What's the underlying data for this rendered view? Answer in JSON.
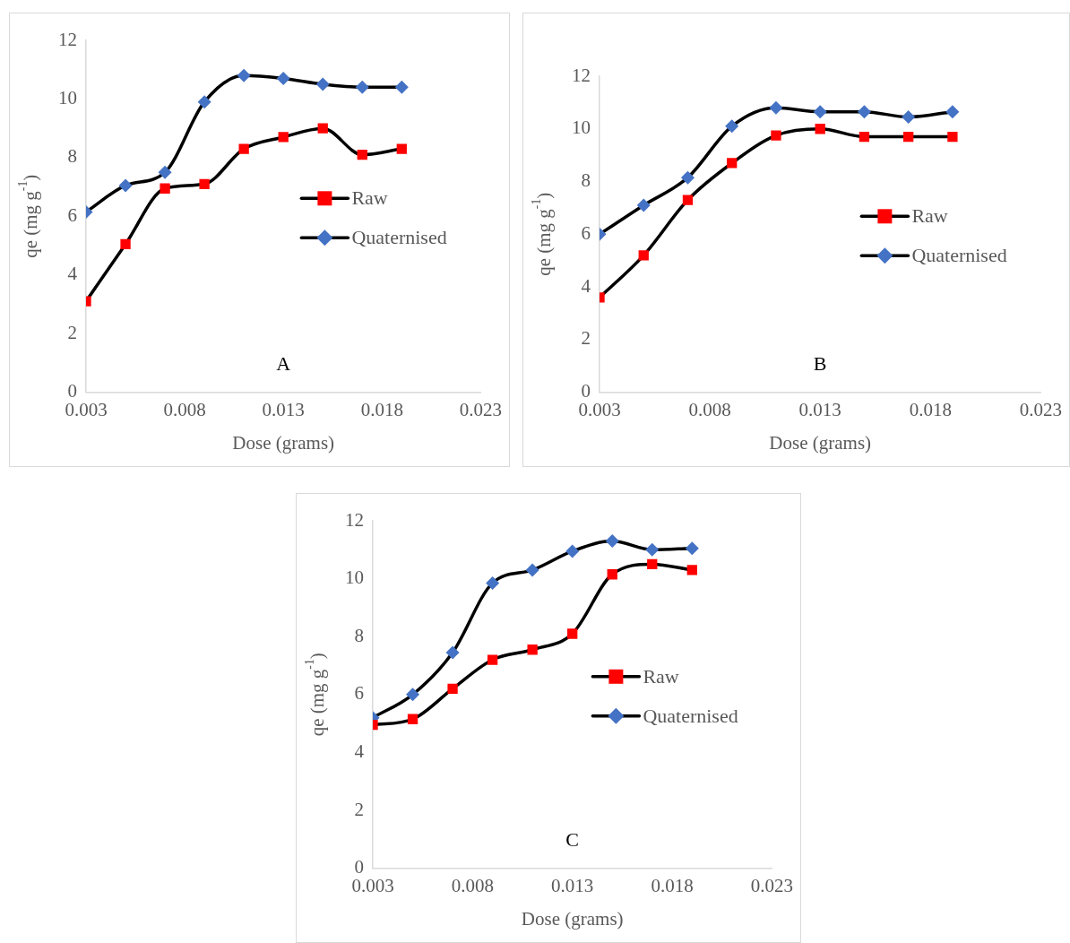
{
  "chart_data": [
    {
      "type": "line",
      "xlabel": "Dose (grams)",
      "ylabel": "qe (mg g$^{-1}$)",
      "x": [
        0.003,
        0.005,
        0.007,
        0.009,
        0.011,
        0.013,
        0.015,
        0.017,
        0.019
      ],
      "xlim": [
        0.003,
        0.023
      ],
      "xticks": [
        0.003,
        0.008,
        0.013,
        0.018,
        0.023
      ],
      "ylim": [
        0,
        12
      ],
      "yticks": [
        0,
        2,
        4,
        6,
        8,
        10,
        12
      ],
      "grid": false,
      "legend": "right",
      "annotations": [
        "A"
      ],
      "series": [
        {
          "name": "Raw",
          "color": "#ff0000",
          "marker": "square",
          "values": [
            3.1,
            5.05,
            6.95,
            7.1,
            8.3,
            8.7,
            9.0,
            8.1,
            8.3
          ]
        },
        {
          "name": "Quaternised",
          "color": "#4472c4",
          "marker": "diamond",
          "values": [
            6.15,
            7.05,
            7.5,
            9.9,
            10.8,
            10.7,
            10.5,
            10.4,
            10.4
          ]
        }
      ]
    },
    {
      "type": "line",
      "xlabel": "Dose (grams)",
      "ylabel": "qe (mg g$^{-1}$)",
      "x": [
        0.003,
        0.005,
        0.007,
        0.009,
        0.011,
        0.013,
        0.015,
        0.017,
        0.019
      ],
      "xlim": [
        0.003,
        0.023
      ],
      "xticks": [
        0.003,
        0.008,
        0.013,
        0.018,
        0.023
      ],
      "ylim": [
        0,
        12
      ],
      "yticks": [
        0,
        2,
        4,
        6,
        8,
        10,
        12
      ],
      "grid": false,
      "legend": "right",
      "annotations": [
        "B"
      ],
      "series": [
        {
          "name": "Raw",
          "color": "#ff0000",
          "marker": "square",
          "values": [
            3.6,
            5.2,
            7.3,
            8.7,
            9.75,
            10.0,
            9.7,
            9.7,
            9.7
          ]
        },
        {
          "name": "Quaternised",
          "color": "#4472c4",
          "marker": "diamond",
          "values": [
            6.0,
            7.1,
            8.15,
            10.1,
            10.8,
            10.65,
            10.65,
            10.45,
            10.65
          ]
        }
      ]
    },
    {
      "type": "line",
      "xlabel": "Dose (grams)",
      "ylabel": "qe (mg g$^{-1}$)",
      "x": [
        0.003,
        0.005,
        0.007,
        0.009,
        0.011,
        0.013,
        0.015,
        0.017,
        0.019
      ],
      "xlim": [
        0.003,
        0.023
      ],
      "xticks": [
        0.003,
        0.008,
        0.013,
        0.018,
        0.023
      ],
      "ylim": [
        0,
        12
      ],
      "yticks": [
        0,
        2,
        4,
        6,
        8,
        10,
        12
      ],
      "grid": false,
      "legend": "right",
      "annotations": [
        "C"
      ],
      "series": [
        {
          "name": "Raw",
          "color": "#ff0000",
          "marker": "square",
          "values": [
            4.95,
            5.15,
            6.2,
            7.2,
            7.55,
            8.1,
            10.15,
            10.5,
            10.3
          ]
        },
        {
          "name": "Quaternised",
          "color": "#4472c4",
          "marker": "diamond",
          "values": [
            5.2,
            6.0,
            7.45,
            9.85,
            10.3,
            10.95,
            11.3,
            11.0,
            11.05
          ]
        }
      ]
    }
  ]
}
